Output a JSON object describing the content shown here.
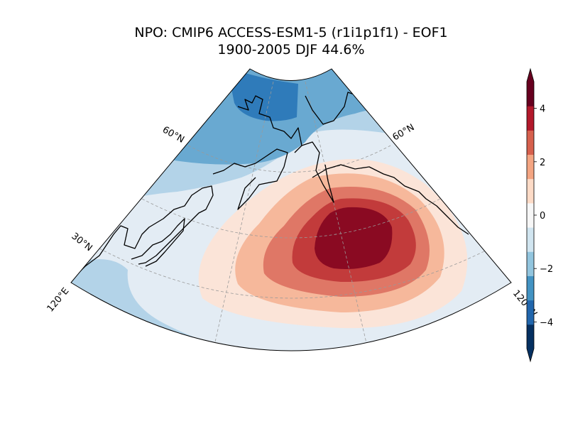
{
  "title": {
    "line1": "NPO: CMIP6 ACCESS-ESM1-5 (r1i1p1f1) - EOF1",
    "line2": "1900-2005 DJF 44.6%"
  },
  "gridline_labels": {
    "lat_60_left": "60°N",
    "lat_60_right": "60°N",
    "lat_30_left": "30°N",
    "lon_120_left": "120°E",
    "lon_120_right": "120°W"
  },
  "colorbar": {
    "ticks": [
      "4",
      "2",
      "0",
      "−2",
      "−4"
    ],
    "levels": [
      -5,
      -4,
      -3,
      -2,
      -1,
      0,
      1,
      2,
      3,
      4,
      5
    ],
    "colors": [
      "#053061",
      "#2166ac",
      "#4393c3",
      "#92c5de",
      "#d1e5f0",
      "#f7f7f7",
      "#fddbc7",
      "#f4a582",
      "#d6604d",
      "#b2182b",
      "#67001f"
    ],
    "extend": "both"
  },
  "map_colors": {
    "ocean_neutral": "#e3ecf4",
    "neg_1": "#b3d3e8",
    "neg_2": "#69a9d1",
    "neg_3": "#2f7bba",
    "pos_1": "#fbe4d8",
    "pos_2": "#f6b89b",
    "pos_3": "#df7766",
    "pos_4": "#c23b3b",
    "pos_5": "#8a0a22",
    "coast": "#000000",
    "gridline": "#9a9a9a"
  }
}
